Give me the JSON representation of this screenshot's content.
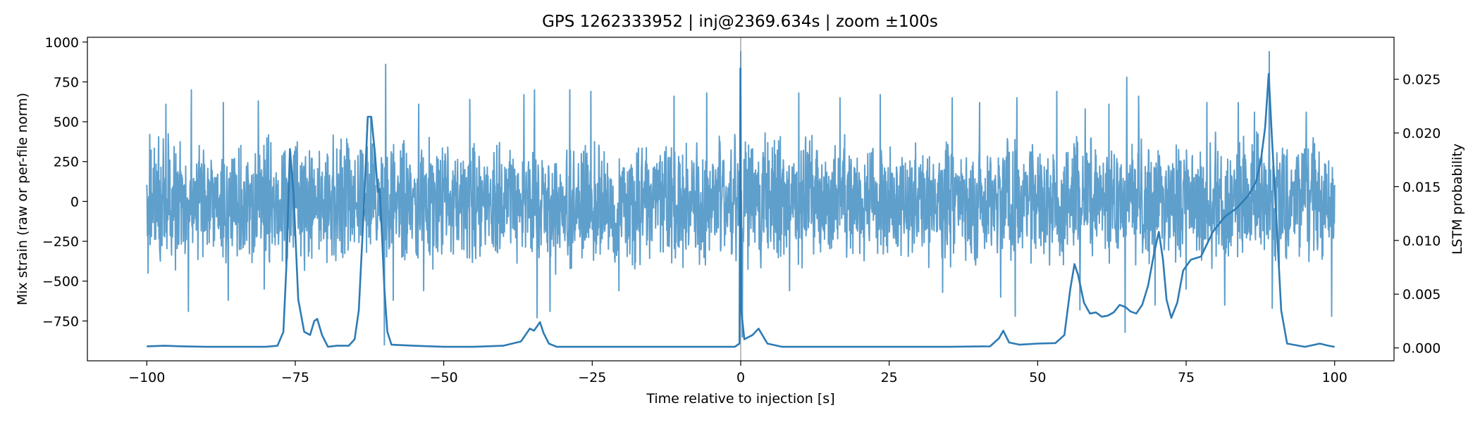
{
  "chart_data": {
    "type": "line",
    "title": "GPS 1262333952 | inj@2369.634s | zoom ±100s",
    "xlabel": "Time relative to injection [s]",
    "ylabel_left": "Mix strain (raw or per-file norm)",
    "ylabel_right": "LSTM probability",
    "xlim": [
      -110,
      110
    ],
    "ylim_left": [
      -1000,
      1030
    ],
    "ylim_right": [
      -0.0012,
      0.0289
    ],
    "xticks": [
      -100,
      -75,
      -50,
      -25,
      0,
      25,
      50,
      75,
      100
    ],
    "yticks_left": [
      -750,
      -500,
      -250,
      0,
      250,
      500,
      750,
      1000
    ],
    "yticks_right": [
      0.0,
      0.005,
      0.01,
      0.015,
      0.02,
      0.025
    ],
    "yticks_right_labels": [
      "0.000",
      "0.005",
      "0.010",
      "0.015",
      "0.020",
      "0.025"
    ],
    "injection_marker_x": 0,
    "colors": {
      "strain": "#5f9fcc",
      "probability": "#2e7bb4",
      "marker": "#888888"
    },
    "series": [
      {
        "name": "Mix strain",
        "axis": "left",
        "x_range": [
          -100,
          100
        ],
        "typical_amplitude": 350,
        "peaks": [
          {
            "x": -99.5,
            "y": 420
          },
          {
            "x": -96.8,
            "y": 610
          },
          {
            "x": -92.5,
            "y": 700
          },
          {
            "x": -87.1,
            "y": 620
          },
          {
            "x": -81.2,
            "y": 630
          },
          {
            "x": -75.8,
            "y": 310
          },
          {
            "x": -62.3,
            "y": 530
          },
          {
            "x": -59.8,
            "y": 860
          },
          {
            "x": -54.2,
            "y": 610
          },
          {
            "x": -45.6,
            "y": 640
          },
          {
            "x": -36.5,
            "y": 670
          },
          {
            "x": -34.7,
            "y": 700
          },
          {
            "x": -28.8,
            "y": 700
          },
          {
            "x": -25.2,
            "y": 690
          },
          {
            "x": -11.2,
            "y": 660
          },
          {
            "x": -5.7,
            "y": 680
          },
          {
            "x": 0.0,
            "y": 940
          },
          {
            "x": 9.8,
            "y": 680
          },
          {
            "x": 16.7,
            "y": 650
          },
          {
            "x": 23.5,
            "y": 670
          },
          {
            "x": 35.6,
            "y": 650
          },
          {
            "x": 40.2,
            "y": 620
          },
          {
            "x": 46.5,
            "y": 650
          },
          {
            "x": 53.2,
            "y": 690
          },
          {
            "x": 58.0,
            "y": 580
          },
          {
            "x": 62.0,
            "y": 610
          },
          {
            "x": 65.0,
            "y": 780
          },
          {
            "x": 67.0,
            "y": 660
          },
          {
            "x": 78.5,
            "y": 620
          },
          {
            "x": 83.8,
            "y": 620
          },
          {
            "x": 86.5,
            "y": 560
          },
          {
            "x": 89.0,
            "y": 940
          },
          {
            "x": 95.2,
            "y": 560
          },
          {
            "x": 99.5,
            "y": 310
          }
        ],
        "troughs": [
          {
            "x": -99.8,
            "y": -450
          },
          {
            "x": -93.0,
            "y": -690
          },
          {
            "x": -86.3,
            "y": -620
          },
          {
            "x": -80.2,
            "y": -550
          },
          {
            "x": -60.0,
            "y": -900
          },
          {
            "x": -58.5,
            "y": -620
          },
          {
            "x": -53.4,
            "y": -560
          },
          {
            "x": -34.3,
            "y": -730
          },
          {
            "x": -32.1,
            "y": -690
          },
          {
            "x": -20.5,
            "y": -560
          },
          {
            "x": 0.3,
            "y": -850
          },
          {
            "x": 8.2,
            "y": -560
          },
          {
            "x": 34.0,
            "y": -570
          },
          {
            "x": 43.8,
            "y": -600
          },
          {
            "x": 46.2,
            "y": -720
          },
          {
            "x": 57.1,
            "y": -680
          },
          {
            "x": 64.7,
            "y": -820
          },
          {
            "x": 69.8,
            "y": -650
          },
          {
            "x": 75.0,
            "y": -550
          },
          {
            "x": 81.5,
            "y": -650
          },
          {
            "x": 89.5,
            "y": -670
          },
          {
            "x": 99.5,
            "y": -720
          }
        ]
      },
      {
        "name": "LSTM probability",
        "axis": "right",
        "points": [
          [
            -100,
            0.00015
          ],
          [
            -97,
            0.0002
          ],
          [
            -94,
            0.00015
          ],
          [
            -90,
            0.0001
          ],
          [
            -85,
            0.0001
          ],
          [
            -80,
            0.0001
          ],
          [
            -78,
            0.0002
          ],
          [
            -77,
            0.0015
          ],
          [
            -76.5,
            0.0075
          ],
          [
            -75.9,
            0.0185
          ],
          [
            -75.3,
            0.0145
          ],
          [
            -74.5,
            0.0045
          ],
          [
            -73.5,
            0.0015
          ],
          [
            -72.5,
            0.0012
          ],
          [
            -71.8,
            0.0025
          ],
          [
            -71.3,
            0.0027
          ],
          [
            -70.5,
            0.0012
          ],
          [
            -69.5,
            0.0001
          ],
          [
            -68,
            0.0002
          ],
          [
            -66,
            0.0002
          ],
          [
            -65,
            0.0008
          ],
          [
            -64.3,
            0.0035
          ],
          [
            -63.5,
            0.0125
          ],
          [
            -62.8,
            0.0215
          ],
          [
            -62.2,
            0.0215
          ],
          [
            -61.6,
            0.0182
          ],
          [
            -61.1,
            0.0145
          ],
          [
            -60.8,
            0.0148
          ],
          [
            -60.4,
            0.0105
          ],
          [
            -60.0,
            0.0055
          ],
          [
            -59.5,
            0.0015
          ],
          [
            -58.8,
            0.0003
          ],
          [
            -55,
            0.0002
          ],
          [
            -50,
            0.0001
          ],
          [
            -45,
            0.0001
          ],
          [
            -40,
            0.0002
          ],
          [
            -37,
            0.0006
          ],
          [
            -35.5,
            0.0018
          ],
          [
            -34.8,
            0.0016
          ],
          [
            -33.8,
            0.0024
          ],
          [
            -33.2,
            0.0014
          ],
          [
            -32.3,
            0.0004
          ],
          [
            -31,
            0.0001
          ],
          [
            -25,
            0.0001
          ],
          [
            -15,
            0.0001
          ],
          [
            -5,
            0.0001
          ],
          [
            -1,
            0.0001
          ],
          [
            -0.2,
            0.0004
          ],
          [
            -0.05,
            0.026
          ],
          [
            0.1,
            0.0035
          ],
          [
            0.6,
            0.0008
          ],
          [
            2.0,
            0.0012
          ],
          [
            3.0,
            0.0018
          ],
          [
            4.5,
            0.0004
          ],
          [
            7,
            0.0001
          ],
          [
            15,
            0.0001
          ],
          [
            25,
            0.0001
          ],
          [
            35,
            0.0001
          ],
          [
            42,
            0.00015
          ],
          [
            43.5,
            0.0009
          ],
          [
            44.2,
            0.0016
          ],
          [
            45.2,
            0.0005
          ],
          [
            47,
            0.0003
          ],
          [
            50,
            0.0004
          ],
          [
            53,
            0.00045
          ],
          [
            54.5,
            0.0012
          ],
          [
            55.5,
            0.0055
          ],
          [
            56.2,
            0.0078
          ],
          [
            56.8,
            0.0068
          ],
          [
            57.8,
            0.0042
          ],
          [
            58.8,
            0.0032
          ],
          [
            59.8,
            0.0033
          ],
          [
            60.8,
            0.0029
          ],
          [
            61.8,
            0.003
          ],
          [
            62.8,
            0.0033
          ],
          [
            63.8,
            0.004
          ],
          [
            64.8,
            0.0038
          ],
          [
            65.6,
            0.0034
          ],
          [
            66.6,
            0.0032
          ],
          [
            67.6,
            0.004
          ],
          [
            68.6,
            0.0058
          ],
          [
            69.6,
            0.0088
          ],
          [
            70.4,
            0.0108
          ],
          [
            71.1,
            0.0082
          ],
          [
            71.7,
            0.0045
          ],
          [
            72.5,
            0.0028
          ],
          [
            73.5,
            0.0042
          ],
          [
            74.5,
            0.0072
          ],
          [
            75.8,
            0.0082
          ],
          [
            77.5,
            0.0085
          ],
          [
            79.5,
            0.0108
          ],
          [
            81.5,
            0.0122
          ],
          [
            83.5,
            0.013
          ],
          [
            85.5,
            0.0142
          ],
          [
            86.8,
            0.0155
          ],
          [
            87.6,
            0.0175
          ],
          [
            88.3,
            0.0205
          ],
          [
            88.9,
            0.0255
          ],
          [
            89.4,
            0.02
          ],
          [
            90.2,
            0.012
          ],
          [
            91.0,
            0.0035
          ],
          [
            92,
            0.0004
          ],
          [
            95,
            0.0001
          ],
          [
            97.5,
            0.0004
          ],
          [
            99,
            0.0002
          ],
          [
            100,
            0.0001
          ]
        ]
      }
    ]
  }
}
